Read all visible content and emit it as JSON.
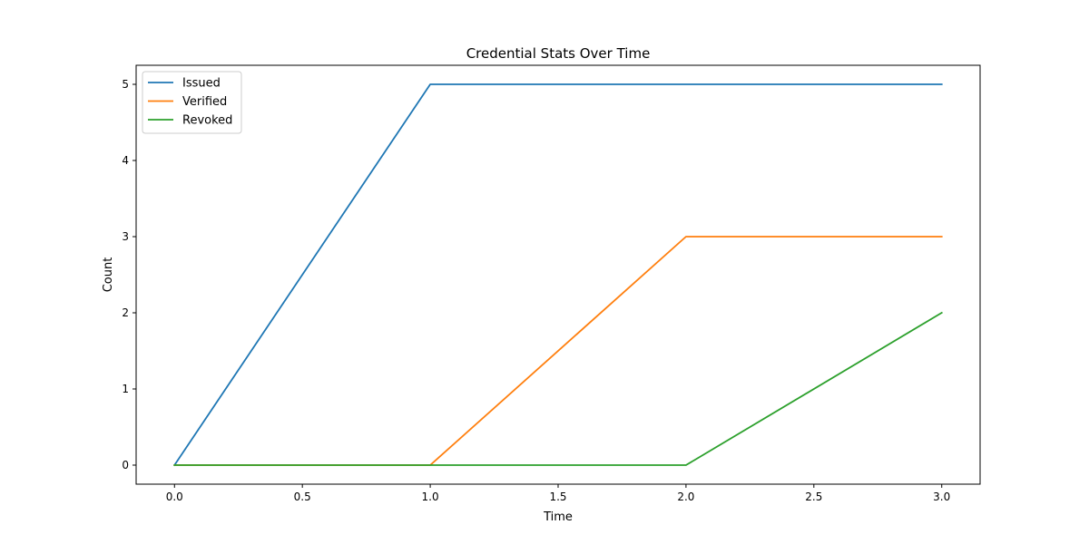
{
  "chart_data": {
    "type": "line",
    "title": "Credential Stats Over Time",
    "xlabel": "Time",
    "ylabel": "Count",
    "x": [
      0,
      1,
      2,
      3
    ],
    "series": [
      {
        "name": "Issued",
        "values": [
          0,
          5,
          5,
          5
        ],
        "color": "#1f77b4"
      },
      {
        "name": "Verified",
        "values": [
          0,
          0,
          3,
          3
        ],
        "color": "#ff7f0e"
      },
      {
        "name": "Revoked",
        "values": [
          0,
          0,
          0,
          2
        ],
        "color": "#2ca02c"
      }
    ],
    "xticks": [
      0.0,
      0.5,
      1.0,
      1.5,
      2.0,
      2.5,
      3.0
    ],
    "xtick_labels": [
      "0.0",
      "0.5",
      "1.0",
      "1.5",
      "2.0",
      "2.5",
      "3.0"
    ],
    "yticks": [
      0,
      1,
      2,
      3,
      4,
      5
    ],
    "ytick_labels": [
      "0",
      "1",
      "2",
      "3",
      "4",
      "5"
    ],
    "xlim": [
      -0.15,
      3.15
    ],
    "ylim": [
      -0.25,
      5.25
    ],
    "grid": false,
    "legend_position": "top-left"
  }
}
